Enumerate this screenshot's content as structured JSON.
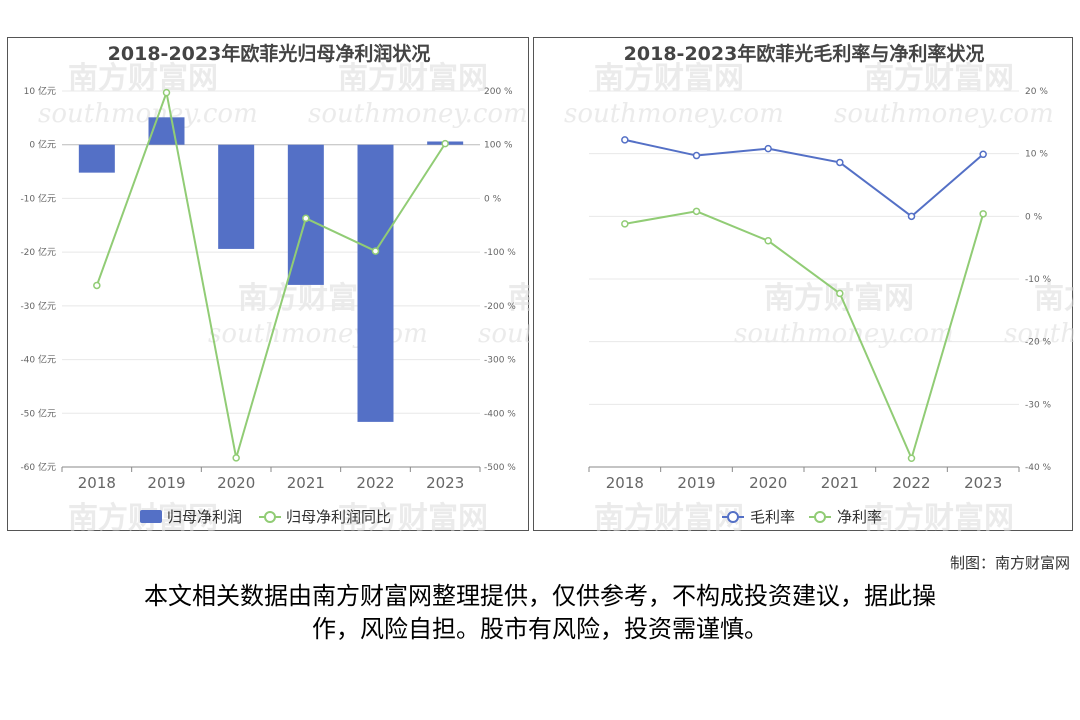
{
  "charts": {
    "left": {
      "title": "2018-2023年欧菲光归母净利润状况",
      "categories": [
        "2018",
        "2019",
        "2020",
        "2021",
        "2022",
        "2023"
      ],
      "bar_series_name": "归母净利润",
      "line_series_name": "归母净利润同比",
      "bar_values": [
        -5.2,
        5.1,
        -19.4,
        -26.1,
        -51.6,
        0.6
      ],
      "line_values": [
        -162,
        197,
        -483,
        -37,
        -98,
        102
      ],
      "y_left_ticks": [
        "10 亿元",
        "0 亿元",
        "-10 亿元",
        "-20 亿元",
        "-30 亿元",
        "-40 亿元",
        "-50 亿元",
        "-60 亿元"
      ],
      "y_right_ticks": [
        "200 %",
        "100 %",
        "0 %",
        "-100 %",
        "-200 %",
        "-300 %",
        "-400 %",
        "-500 %"
      ],
      "bar_color": "#5470c6",
      "line_color": "#91cc75"
    },
    "right": {
      "title": "2018-2023年欧菲光毛利率与净利率状况",
      "categories": [
        "2018",
        "2019",
        "2020",
        "2021",
        "2022",
        "2023"
      ],
      "series1_name": "毛利率",
      "series2_name": "净利率",
      "gross_margin": [
        12.2,
        9.7,
        10.8,
        8.6,
        0.0,
        9.9
      ],
      "net_margin": [
        -1.2,
        0.8,
        -3.9,
        -12.3,
        -38.6,
        0.4
      ],
      "y_right_ticks": [
        "20 %",
        "10 %",
        "0 %",
        "-10 %",
        "-20 %",
        "-30 %",
        "-40 %"
      ],
      "series1_color": "#5470c6",
      "series2_color": "#91cc75"
    }
  },
  "chart_data": [
    {
      "type": "bar",
      "title": "2018-2023年欧菲光归母净利润状况",
      "categories": [
        "2018",
        "2019",
        "2020",
        "2021",
        "2022",
        "2023"
      ],
      "series": [
        {
          "name": "归母净利润",
          "type": "bar",
          "unit": "亿元",
          "values": [
            -5.2,
            5.1,
            -19.4,
            -26.1,
            -51.6,
            0.6
          ]
        },
        {
          "name": "归母净利润同比",
          "type": "line",
          "unit": "%",
          "values": [
            -162,
            197,
            -483,
            -37,
            -98,
            102
          ]
        }
      ],
      "ylim_left": [
        -60,
        10
      ],
      "ylim_right": [
        -500,
        200
      ],
      "legend": "bottom"
    },
    {
      "type": "line",
      "title": "2018-2023年欧菲光毛利率与净利率状况",
      "categories": [
        "2018",
        "2019",
        "2020",
        "2021",
        "2022",
        "2023"
      ],
      "series": [
        {
          "name": "毛利率",
          "unit": "%",
          "values": [
            12.2,
            9.7,
            10.8,
            8.6,
            0.0,
            9.9
          ]
        },
        {
          "name": "净利率",
          "unit": "%",
          "values": [
            -1.2,
            0.8,
            -3.9,
            -12.3,
            -38.6,
            0.4
          ]
        }
      ],
      "ylim": [
        -40,
        20
      ],
      "legend": "bottom"
    }
  ],
  "watermark": {
    "cn": "南方财富网",
    "en": "southmoney.com"
  },
  "footer": {
    "credit": "制图：南方财富网",
    "disclaimer_line1": "本文相关数据由南方财富网整理提供，仅供参考，不构成投资建议，据此操",
    "disclaimer_line2": "作，风险自担。股市有风险，投资需谨慎。"
  }
}
